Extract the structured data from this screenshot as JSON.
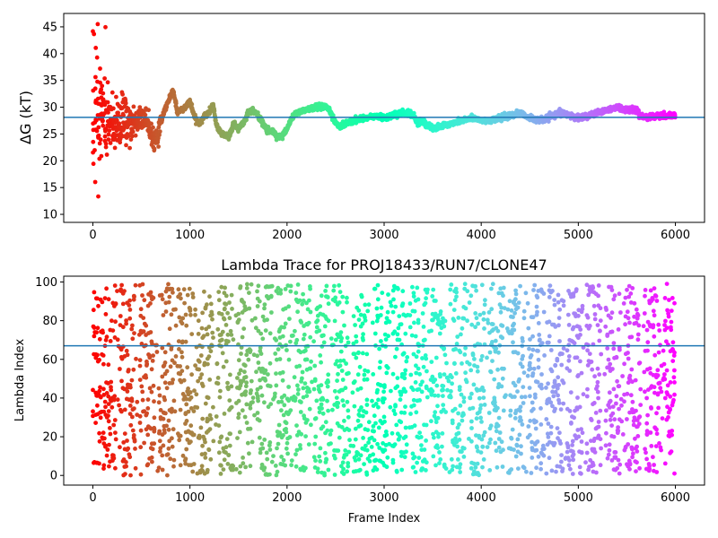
{
  "chart_data": [
    {
      "type": "scatter",
      "ylabel": "ΔG (kT)",
      "xlim": [
        -300,
        6300
      ],
      "ylim": [
        8.5,
        47.5
      ],
      "xticks": [
        0,
        1000,
        2000,
        3000,
        4000,
        5000,
        6000
      ],
      "yticks": [
        10,
        15,
        20,
        25,
        30,
        35,
        40,
        45
      ],
      "hline": 28.1,
      "hline_color": "#1f77b4",
      "colormap": "rainbow (red at frame 0 to violet at frame 6000)",
      "n_points": 6000,
      "series": [
        {
          "trend_x": [
            0,
            20,
            50,
            100,
            150,
            200,
            300,
            400,
            500,
            550,
            600,
            630,
            700,
            750,
            800,
            830,
            870,
            950,
            1000,
            1050,
            1100,
            1150,
            1200,
            1240,
            1270,
            1300,
            1350,
            1400,
            1450,
            1500,
            1550,
            1600,
            1650,
            1700,
            1750,
            1800,
            1850,
            1900,
            1950,
            2000,
            2050,
            2100,
            2200,
            2300,
            2350,
            2400,
            2450,
            2500,
            2550,
            2600,
            2700,
            2800,
            2900,
            3000,
            3100,
            3200,
            3300,
            3350,
            3400,
            3450,
            3500,
            3600,
            3700,
            3800,
            3900,
            4000,
            4100,
            4200,
            4300,
            4400,
            4500,
            4600,
            4700,
            4800,
            4900,
            5000,
            5100,
            5200,
            5300,
            5400,
            5500,
            5600,
            5650,
            5700,
            5800,
            5900,
            6000
          ],
          "trend_y": [
            30,
            28,
            29,
            30,
            28,
            27,
            27.5,
            27,
            28,
            27.5,
            25,
            23,
            27,
            30,
            32,
            33,
            29,
            30,
            31,
            28,
            27,
            28.5,
            29,
            30.5,
            27,
            25.5,
            25,
            24.5,
            27,
            26,
            27,
            29,
            29.5,
            28.5,
            27,
            25.5,
            25.5,
            24.5,
            24.5,
            26,
            28,
            29,
            29.5,
            30,
            30,
            30,
            29,
            27,
            26.5,
            27,
            27.5,
            28,
            28.3,
            28,
            28.5,
            29,
            28.5,
            27,
            27.5,
            26.5,
            26,
            26.5,
            27,
            27.5,
            28,
            27.5,
            27.5,
            28,
            28.5,
            29,
            28,
            27.5,
            28,
            29,
            28.5,
            28,
            28.5,
            29,
            29.5,
            30,
            29.5,
            29.5,
            28.2,
            28.2,
            28.3,
            28.3,
            28.5
          ]
        }
      ]
    },
    {
      "type": "scatter",
      "title": "Lambda Trace for PROJ18433/RUN7/CLONE47",
      "xlabel": "Frame Index",
      "ylabel": "Lambda Index",
      "xlim": [
        -300,
        6300
      ],
      "ylim": [
        -5,
        103
      ],
      "xticks": [
        0,
        1000,
        2000,
        3000,
        4000,
        5000,
        6000
      ],
      "yticks": [
        0,
        20,
        40,
        60,
        80,
        100
      ],
      "hline": 67,
      "hline_color": "#1f77b4",
      "colormap": "rainbow (red at frame 0 to violet at frame 6000)",
      "n_points": 6000,
      "value_range": [
        0,
        99
      ]
    }
  ]
}
